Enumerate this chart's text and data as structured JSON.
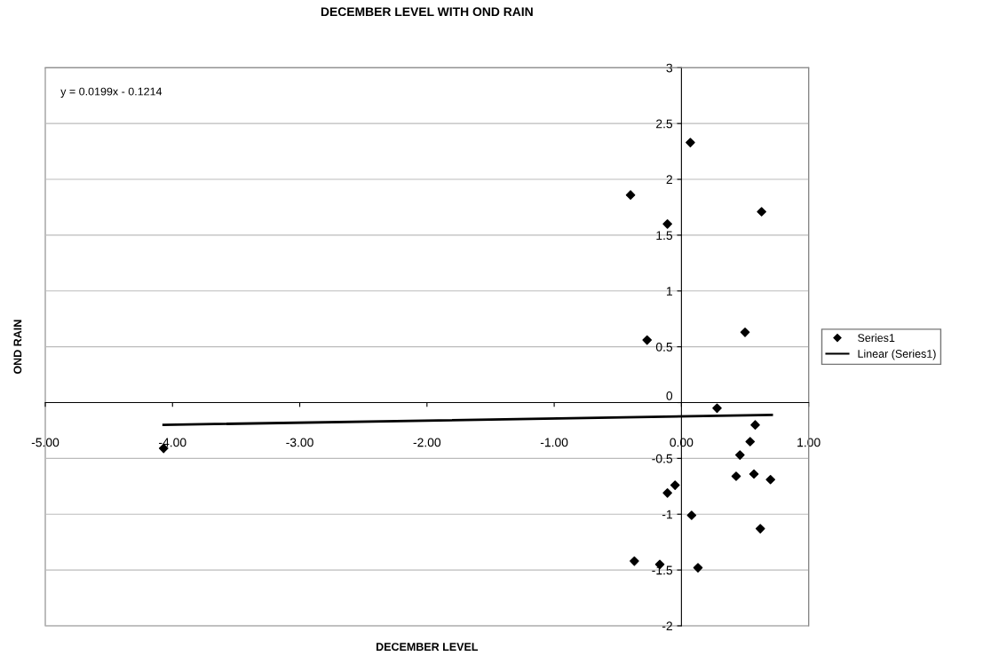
{
  "chart_data": {
    "type": "scatter",
    "title": "DECEMBER LEVEL WITH OND RAIN",
    "xlabel": "DECEMBER LEVEL",
    "ylabel": "OND RAIN",
    "annotations": [
      "y = 0.0199x - 0.1214"
    ],
    "series": [
      {
        "name": "Series1",
        "color": "#000000",
        "marker": "diamond",
        "x": [
          0.07,
          -0.4,
          -0.11,
          0.63,
          0.5,
          -0.27,
          0.28,
          0.58,
          0.54,
          0.46,
          0.43,
          0.57,
          0.7,
          -0.05,
          -0.11,
          0.08,
          0.62,
          -0.37,
          -0.17,
          0.13,
          -4.07
        ],
        "values": [
          2.33,
          1.86,
          1.6,
          1.71,
          0.63,
          0.56,
          -0.05,
          -0.2,
          -0.35,
          -0.47,
          -0.66,
          -0.64,
          -0.69,
          -0.74,
          -0.81,
          -1.01,
          -1.13,
          -1.42,
          -1.45,
          -1.48,
          -0.41
        ]
      },
      {
        "name": "Linear (Series1)",
        "type": "line",
        "color": "#000000",
        "marker": "none",
        "line_style": "solid",
        "x": [
          -4.07,
          0.71
        ],
        "values": [
          -0.2,
          -0.11
        ]
      }
    ],
    "xlim": [
      -5,
      1
    ],
    "ylim": [
      -2,
      3
    ],
    "xticks": [
      {
        "value": -5,
        "label": "-5.00"
      },
      {
        "value": -4,
        "label": "-4.00"
      },
      {
        "value": -3,
        "label": "-3.00"
      },
      {
        "value": -2,
        "label": "-2.00"
      },
      {
        "value": -1,
        "label": "-1.00"
      },
      {
        "value": 0,
        "label": "0.00"
      },
      {
        "value": 1,
        "label": "1.00"
      }
    ],
    "yticks": [
      -2,
      -1.5,
      -1,
      -0.5,
      0,
      0.5,
      1,
      1.5,
      2,
      2.5,
      3
    ],
    "grid": "y",
    "legend": "right"
  }
}
